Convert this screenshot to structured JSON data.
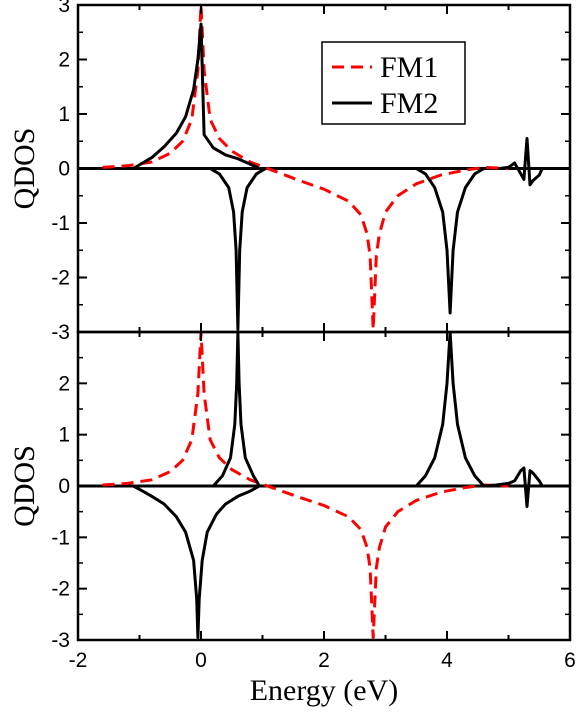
{
  "chart_data": {
    "type": "line",
    "xlabel": "Energy (eV)",
    "xlim": [
      -2,
      6
    ],
    "xticks": [
      "-2",
      "0",
      "2",
      "4",
      "6"
    ],
    "legend": {
      "placement": "top-right",
      "entries": [
        {
          "name": "FM1",
          "color": "#ff0000",
          "style": "dashed"
        },
        {
          "name": "FM2",
          "color": "#000000",
          "style": "solid"
        }
      ]
    },
    "panels": [
      {
        "ylabel": "QDOS",
        "ylim": [
          -3,
          3
        ],
        "yticks": [
          "-3",
          "-2",
          "-1",
          "0",
          "1",
          "2",
          "3"
        ],
        "series": [
          {
            "name": "FM1",
            "color": "#ff0000",
            "x": [
              -1.6,
              -1.2,
              -0.8,
              -0.5,
              -0.3,
              -0.15,
              -0.05,
              0.0,
              0.05,
              0.15,
              0.3,
              0.5,
              0.8,
              1.2,
              1.6,
              2.0,
              2.4,
              2.6,
              2.7,
              2.75,
              2.8,
              2.85,
              2.9,
              3.0,
              3.2,
              3.5,
              3.9,
              4.3,
              4.6,
              5.0
            ],
            "y": [
              0.02,
              0.05,
              0.12,
              0.28,
              0.5,
              0.9,
              1.8,
              3.0,
              1.8,
              0.9,
              0.55,
              0.32,
              0.12,
              -0.05,
              -0.22,
              -0.38,
              -0.6,
              -0.85,
              -1.2,
              -1.6,
              -2.95,
              -1.6,
              -1.2,
              -0.8,
              -0.5,
              -0.28,
              -0.12,
              -0.03,
              0.02,
              0.0
            ]
          },
          {
            "name": "FM2",
            "color": "#000000",
            "x": [
              -1.1,
              -0.95,
              -0.8,
              -0.6,
              -0.4,
              -0.25,
              -0.12,
              -0.05,
              0.0,
              0.05,
              0.2,
              0.4,
              0.6,
              0.8,
              0.95
            ],
            "y": [
              0.0,
              0.1,
              0.2,
              0.4,
              0.65,
              0.95,
              1.45,
              2.0,
              2.65,
              0.62,
              0.38,
              0.25,
              0.18,
              0.08,
              0.0
            ]
          },
          {
            "name": "FM2",
            "color": "#000000",
            "x": [
              0.15,
              0.3,
              0.45,
              0.53,
              0.57,
              0.6,
              0.63,
              0.67,
              0.75,
              0.9,
              1.05
            ],
            "y": [
              0.0,
              -0.1,
              -0.35,
              -0.8,
              -1.5,
              -2.95,
              -1.5,
              -0.8,
              -0.35,
              -0.1,
              0.0
            ]
          },
          {
            "name": "FM2",
            "color": "#000000",
            "x": [
              3.5,
              3.65,
              3.8,
              3.93,
              4.0,
              4.05,
              4.1,
              4.17,
              4.3,
              4.45,
              4.6
            ],
            "y": [
              0.0,
              -0.1,
              -0.35,
              -0.8,
              -1.5,
              -2.65,
              -1.5,
              -0.8,
              -0.35,
              -0.1,
              0.0
            ]
          },
          {
            "name": "FM2",
            "color": "#000000",
            "x": [
              4.85,
              5.0,
              5.05,
              5.1,
              5.15,
              5.2,
              5.25,
              5.3,
              5.35,
              5.4,
              5.5,
              5.55
            ],
            "y": [
              0.0,
              0.02,
              0.06,
              0.1,
              0.0,
              -0.1,
              -0.2,
              0.55,
              -0.3,
              -0.22,
              -0.12,
              0.0
            ]
          }
        ]
      },
      {
        "ylabel": "QDOS",
        "ylim": [
          -3,
          3
        ],
        "yticks": [
          "-3",
          "-2",
          "-1",
          "0",
          "1",
          "2"
        ],
        "series": [
          {
            "name": "FM1",
            "color": "#ff0000",
            "x": [
              -1.6,
              -1.2,
              -0.8,
              -0.5,
              -0.3,
              -0.15,
              -0.05,
              0.0,
              0.05,
              0.15,
              0.3,
              0.5,
              0.8,
              1.2,
              1.6,
              2.0,
              2.4,
              2.6,
              2.7,
              2.75,
              2.8,
              2.85,
              2.9,
              3.0,
              3.2,
              3.5,
              3.9,
              4.3,
              4.6,
              5.0
            ],
            "y": [
              0.02,
              0.05,
              0.12,
              0.28,
              0.5,
              0.9,
              1.8,
              3.0,
              1.8,
              0.9,
              0.55,
              0.32,
              0.12,
              -0.05,
              -0.22,
              -0.38,
              -0.6,
              -0.85,
              -1.2,
              -1.6,
              -2.95,
              -1.6,
              -1.2,
              -0.8,
              -0.5,
              -0.28,
              -0.12,
              -0.03,
              0.02,
              0.0
            ]
          },
          {
            "name": "FM2",
            "color": "#000000",
            "x": [
              -1.1,
              -0.95,
              -0.8,
              -0.6,
              -0.4,
              -0.25,
              -0.12,
              -0.07,
              -0.05,
              -0.03,
              0.02,
              0.1,
              0.25,
              0.4,
              0.6,
              0.8,
              0.95
            ],
            "y": [
              0.0,
              -0.1,
              -0.2,
              -0.35,
              -0.6,
              -0.9,
              -1.45,
              -2.2,
              -2.95,
              -2.2,
              -1.45,
              -0.9,
              -0.55,
              -0.35,
              -0.2,
              -0.1,
              0.0
            ]
          },
          {
            "name": "FM2",
            "color": "#000000",
            "x": [
              0.2,
              0.35,
              0.48,
              0.55,
              0.58,
              0.6,
              0.62,
              0.65,
              0.72,
              0.85,
              0.95
            ],
            "y": [
              0.0,
              0.2,
              0.55,
              1.2,
              2.0,
              3.0,
              2.0,
              1.2,
              0.55,
              0.2,
              0.0
            ]
          },
          {
            "name": "FM2",
            "color": "#000000",
            "x": [
              3.5,
              3.65,
              3.8,
              3.93,
              4.0,
              4.05,
              4.1,
              4.17,
              4.3,
              4.45,
              4.6
            ],
            "y": [
              0.0,
              0.2,
              0.55,
              1.2,
              2.0,
              3.0,
              2.0,
              1.2,
              0.55,
              0.2,
              0.0
            ]
          },
          {
            "name": "FM2",
            "color": "#000000",
            "x": [
              4.6,
              4.8,
              5.0,
              5.1,
              5.2,
              5.25,
              5.3,
              5.35,
              5.4,
              5.5,
              5.55
            ],
            "y": [
              0.0,
              0.02,
              0.05,
              0.1,
              0.3,
              0.35,
              -0.4,
              0.3,
              0.25,
              0.1,
              0.0
            ]
          }
        ]
      }
    ]
  }
}
